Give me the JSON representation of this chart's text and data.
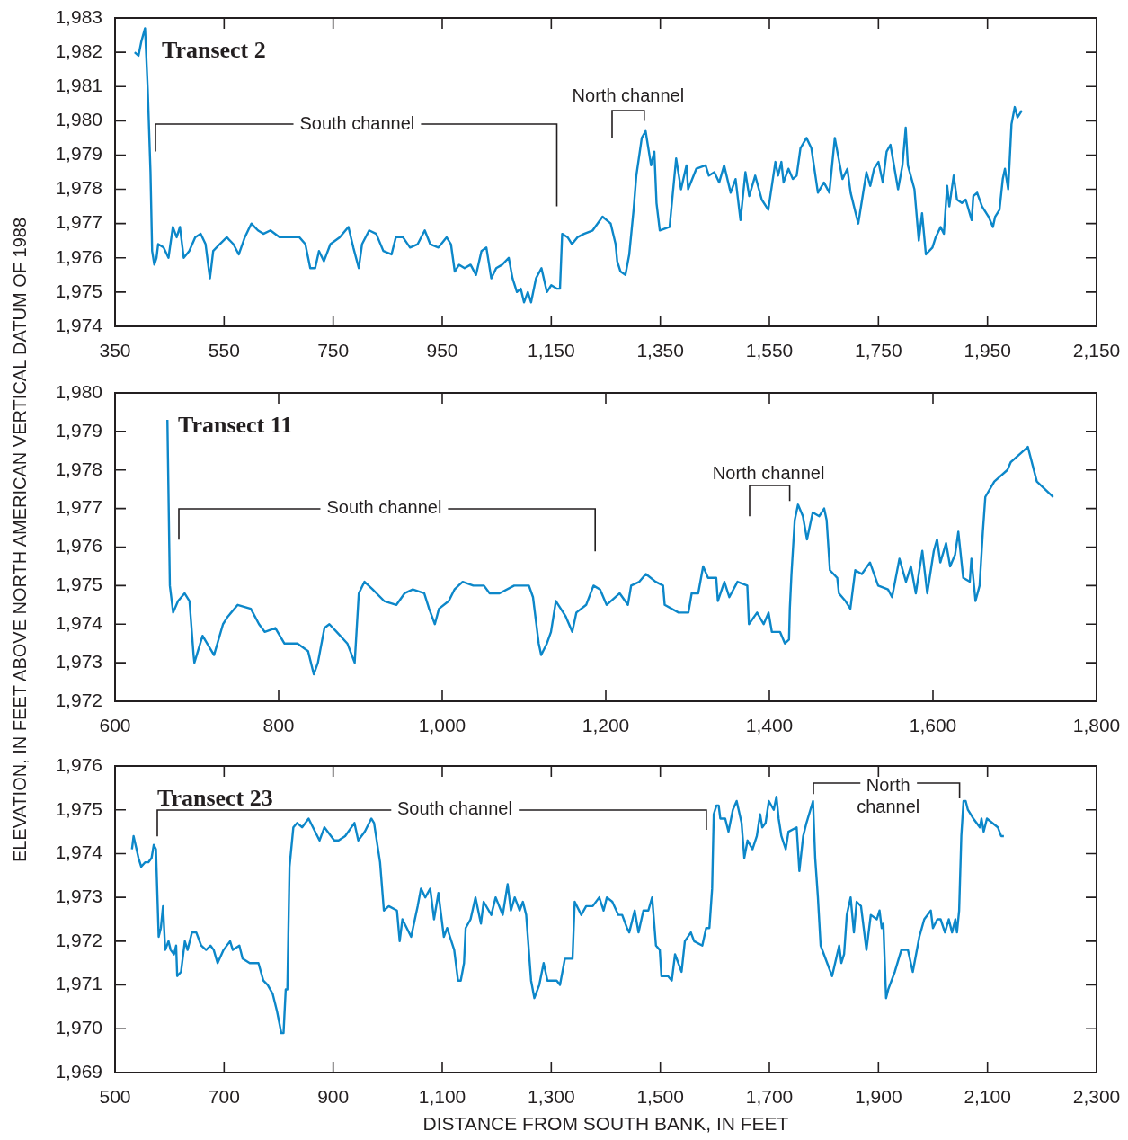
{
  "chart_data": [
    {
      "type": "line",
      "title": "Transect 2",
      "annotations": [
        "South channel",
        "North channel"
      ],
      "xlim": [
        350,
        2150
      ],
      "xticks": [
        350,
        550,
        750,
        950,
        {
          "value": 1150,
          "label": "1,150"
        },
        {
          "value": 1350,
          "label": "1,350"
        },
        {
          "value": 1550,
          "label": "1,550"
        },
        {
          "value": 1750,
          "label": "1,750"
        },
        {
          "value": 1950,
          "label": "1,950"
        },
        {
          "value": 2150,
          "label": "2,150"
        }
      ],
      "ylim": [
        1974,
        1983
      ],
      "yticks": [
        {
          "value": 1974,
          "label": "1,974"
        },
        {
          "value": 1975,
          "label": "1,975"
        },
        {
          "value": 1976,
          "label": "1,976"
        },
        {
          "value": 1977,
          "label": "1,977"
        },
        {
          "value": 1978,
          "label": "1,978"
        },
        {
          "value": 1979,
          "label": "1,979"
        },
        {
          "value": 1980,
          "label": "1,980"
        },
        {
          "value": 1981,
          "label": "1,981"
        },
        {
          "value": 1982,
          "label": "1,982"
        },
        {
          "value": 1983,
          "label": "1,983"
        }
      ],
      "x": [
        386,
        393,
        398,
        405,
        410,
        415,
        418,
        422,
        426,
        429,
        439,
        448,
        456,
        463,
        469,
        476,
        486,
        497,
        507,
        516,
        524,
        530,
        542,
        555,
        567,
        577,
        588,
        600,
        612,
        622,
        635,
        652,
        671,
        688,
        699,
        708,
        717,
        724,
        733,
        745,
        762,
        778,
        787,
        797,
        803,
        816,
        829,
        842,
        857,
        865,
        878,
        891,
        905,
        918,
        928,
        943,
        958,
        966,
        973,
        981,
        991,
        1002,
        1012,
        1022,
        1031,
        1040,
        1049,
        1060,
        1072,
        1079,
        1087,
        1094,
        1100,
        1107,
        1113,
        1122,
        1132,
        1142,
        1150,
        1160,
        1166,
        1170,
        1180,
        1188,
        1198,
        1210,
        1226,
        1244,
        1259,
        1268,
        1271,
        1277,
        1286,
        1293,
        1301,
        1306,
        1316,
        1323,
        1333,
        1339,
        1343,
        1349,
        1367,
        1379,
        1388,
        1398,
        1401,
        1416,
        1433,
        1439,
        1449,
        1458,
        1467,
        1479,
        1488,
        1497,
        1506,
        1513,
        1524,
        1536,
        1548,
        1561,
        1566,
        1572,
        1576,
        1585,
        1593,
        1600,
        1607,
        1618,
        1627,
        1639,
        1650,
        1660,
        1670,
        1684,
        1693,
        1699,
        1713,
        1720,
        1728,
        1735,
        1742,
        1750,
        1758,
        1765,
        1772,
        1786,
        1794,
        1800,
        1804,
        1816,
        1824,
        1830,
        1837,
        1849,
        1855,
        1864,
        1870,
        1876,
        1880,
        1888,
        1894,
        1903,
        1910,
        1921,
        1924,
        1931,
        1940,
        1952,
        1960,
        1964,
        1972,
        1978,
        1982,
        1988,
        1994,
        2000,
        2005,
        2013
      ],
      "series": [
        {
          "color": "#0c87c9",
          "values": [
            1982.0,
            1981.9,
            1982.3,
            1982.7,
            1980.9,
            1978.5,
            1976.2,
            1975.8,
            1976.0,
            1976.4,
            1976.3,
            1976.0,
            1976.9,
            1976.6,
            1976.9,
            1976.0,
            1976.2,
            1976.6,
            1976.7,
            1976.4,
            1975.4,
            1976.2,
            1976.4,
            1976.6,
            1976.4,
            1976.1,
            1976.6,
            1977.0,
            1976.8,
            1976.7,
            1976.8,
            1976.6,
            1976.6,
            1976.6,
            1976.4,
            1975.7,
            1975.7,
            1976.2,
            1975.9,
            1976.4,
            1976.6,
            1976.9,
            1976.3,
            1975.7,
            1976.4,
            1976.8,
            1976.7,
            1976.2,
            1976.1,
            1976.6,
            1976.6,
            1976.3,
            1976.4,
            1976.8,
            1976.4,
            1976.3,
            1976.6,
            1976.4,
            1975.6,
            1975.8,
            1975.7,
            1975.8,
            1975.5,
            1976.2,
            1976.3,
            1975.4,
            1975.7,
            1975.8,
            1976.0,
            1975.4,
            1975.0,
            1975.1,
            1974.7,
            1975.0,
            1974.7,
            1975.4,
            1975.7,
            1975.0,
            1975.2,
            1975.1,
            1975.1,
            1976.7,
            1976.6,
            1976.4,
            1976.6,
            1976.7,
            1976.8,
            1977.2,
            1977.0,
            1976.4,
            1975.9,
            1975.6,
            1975.5,
            1976.1,
            1977.4,
            1978.4,
            1979.5,
            1979.7,
            1978.7,
            1979.1,
            1977.6,
            1976.8,
            1976.9,
            1978.9,
            1978.0,
            1978.7,
            1978.0,
            1978.6,
            1978.7,
            1978.4,
            1978.5,
            1978.2,
            1978.7,
            1977.9,
            1978.3,
            1977.1,
            1978.5,
            1977.8,
            1978.4,
            1977.7,
            1977.4,
            1978.8,
            1978.4,
            1978.8,
            1978.2,
            1978.6,
            1978.3,
            1978.4,
            1979.2,
            1979.5,
            1979.2,
            1977.9,
            1978.2,
            1977.9,
            1979.5,
            1978.3,
            1978.6,
            1977.9,
            1977.0,
            1977.7,
            1978.5,
            1978.1,
            1978.6,
            1978.8,
            1978.2,
            1979.1,
            1979.3,
            1978.0,
            1978.7,
            1979.8,
            1978.7,
            1978.0,
            1976.5,
            1977.3,
            1976.1,
            1976.3,
            1976.6,
            1976.9,
            1976.7,
            1978.1,
            1977.5,
            1978.4,
            1977.7,
            1977.6,
            1977.7,
            1977.1,
            1977.8,
            1977.9,
            1977.5,
            1977.2,
            1976.9,
            1977.2,
            1977.4,
            1978.3,
            1978.6,
            1978.0,
            1979.9,
            1980.4,
            1980.1,
            1980.3
          ]
        }
      ]
    },
    {
      "type": "line",
      "title": "Transect 11",
      "ylabel": "ELEVATION, IN FEET ABOVE NORTH AMERICAN VERTICAL DATUM OF 1988",
      "annotations": [
        "South channel",
        "North channel"
      ],
      "xlim": [
        600,
        1800
      ],
      "xticks": [
        600,
        800,
        {
          "value": 1000,
          "label": "1,000"
        },
        {
          "value": 1200,
          "label": "1,200"
        },
        {
          "value": 1400,
          "label": "1,400"
        },
        {
          "value": 1600,
          "label": "1,600"
        },
        {
          "value": 1800,
          "label": "1,800"
        }
      ],
      "ylim": [
        1972,
        1980
      ],
      "yticks": [
        {
          "value": 1972,
          "label": "1,972"
        },
        {
          "value": 1973,
          "label": "1,973"
        },
        {
          "value": 1974,
          "label": "1,974"
        },
        {
          "value": 1975,
          "label": "1,975"
        },
        {
          "value": 1976,
          "label": "1,976"
        },
        {
          "value": 1977,
          "label": "1,977"
        },
        {
          "value": 1978,
          "label": "1,978"
        },
        {
          "value": 1979,
          "label": "1,979"
        },
        {
          "value": 1980,
          "label": "1,980"
        }
      ],
      "x": [
        664,
        667,
        671,
        677,
        685,
        691,
        696,
        697,
        707,
        721,
        732,
        738,
        750,
        766,
        776,
        783,
        796,
        807,
        823,
        836,
        843,
        848,
        856,
        862,
        871,
        884,
        893,
        898,
        905,
        915,
        929,
        944,
        954,
        964,
        978,
        984,
        991,
        996,
        1008,
        1015,
        1025,
        1038,
        1051,
        1058,
        1070,
        1088,
        1106,
        1111,
        1118,
        1121,
        1128,
        1133,
        1139,
        1151,
        1159,
        1164,
        1176,
        1185,
        1193,
        1201,
        1217,
        1227,
        1231,
        1241,
        1249,
        1261,
        1270,
        1272,
        1289,
        1301,
        1305,
        1313,
        1319,
        1325,
        1335,
        1337,
        1345,
        1351,
        1361,
        1373,
        1375,
        1385,
        1393,
        1399,
        1403,
        1413,
        1419,
        1424,
        1425,
        1427,
        1431,
        1435,
        1441,
        1446,
        1453,
        1461,
        1467,
        1470,
        1474,
        1483,
        1485,
        1493,
        1499,
        1505,
        1513,
        1523,
        1533,
        1545,
        1550,
        1559,
        1567,
        1573,
        1579,
        1587,
        1593,
        1601,
        1605,
        1609,
        1616,
        1621,
        1627,
        1631,
        1637,
        1645,
        1647,
        1652,
        1657,
        1661,
        1664,
        1675,
        1691,
        1695,
        1716,
        1727,
        1747
      ],
      "series": [
        {
          "color": "#0c87c9",
          "values": [
            1979.3,
            1975.0,
            1974.3,
            1974.6,
            1974.8,
            1974.6,
            1973.2,
            1973.0,
            1973.7,
            1973.2,
            1974.0,
            1974.2,
            1974.5,
            1974.4,
            1974.0,
            1973.8,
            1973.9,
            1973.5,
            1973.5,
            1973.3,
            1972.7,
            1973.0,
            1973.9,
            1974.0,
            1973.8,
            1973.5,
            1973.0,
            1974.8,
            1975.1,
            1974.9,
            1974.6,
            1974.5,
            1974.8,
            1974.9,
            1974.8,
            1974.4,
            1974.0,
            1974.4,
            1974.6,
            1974.9,
            1975.1,
            1975.0,
            1975.0,
            1974.8,
            1974.8,
            1975.0,
            1975.0,
            1974.7,
            1973.5,
            1973.2,
            1973.5,
            1973.8,
            1974.6,
            1974.2,
            1973.8,
            1974.3,
            1974.5,
            1975.0,
            1974.9,
            1974.5,
            1974.8,
            1974.5,
            1975.0,
            1975.1,
            1975.3,
            1975.1,
            1975.0,
            1974.5,
            1974.3,
            1974.3,
            1974.8,
            1974.8,
            1975.5,
            1975.2,
            1975.2,
            1974.6,
            1975.1,
            1974.7,
            1975.1,
            1975.0,
            1974.0,
            1974.3,
            1974.0,
            1974.3,
            1973.8,
            1973.8,
            1973.5,
            1973.6,
            1974.4,
            1975.3,
            1976.7,
            1977.1,
            1976.8,
            1976.2,
            1976.9,
            1976.8,
            1977.0,
            1976.7,
            1975.4,
            1975.2,
            1974.8,
            1974.6,
            1974.4,
            1975.4,
            1975.3,
            1975.6,
            1975.0,
            1974.9,
            1974.7,
            1975.7,
            1975.1,
            1975.5,
            1974.8,
            1975.9,
            1974.8,
            1975.9,
            1976.2,
            1975.6,
            1976.1,
            1975.5,
            1975.8,
            1976.4,
            1975.2,
            1975.1,
            1975.7,
            1974.6,
            1975.0,
            1976.4,
            1977.3,
            1977.7,
            1978.0,
            1978.2,
            1978.6,
            1977.7,
            1977.3
          ]
        }
      ]
    },
    {
      "type": "line",
      "title": "Transect 23",
      "xlabel": "DISTANCE FROM SOUTH BANK, IN FEET",
      "annotations": [
        "South channel",
        "North channel"
      ],
      "xlim": [
        500,
        2300
      ],
      "xticks": [
        500,
        700,
        900,
        {
          "value": 1100,
          "label": "1,100"
        },
        {
          "value": 1300,
          "label": "1,300"
        },
        {
          "value": 1500,
          "label": "1,500"
        },
        {
          "value": 1700,
          "label": "1,700"
        },
        {
          "value": 1900,
          "label": "1,900"
        },
        {
          "value": 2100,
          "label": "2,100"
        },
        {
          "value": 2300,
          "label": "2,300"
        }
      ],
      "ylim": [
        1969,
        1976
      ],
      "yticks": [
        {
          "value": 1969,
          "label": "1,969"
        },
        {
          "value": 1970,
          "label": "1,970"
        },
        {
          "value": 1971,
          "label": "1,971"
        },
        {
          "value": 1972,
          "label": "1,972"
        },
        {
          "value": 1973,
          "label": "1,973"
        },
        {
          "value": 1974,
          "label": "1,974"
        },
        {
          "value": 1975,
          "label": "1,975"
        },
        {
          "value": 1976,
          "label": "1,976"
        }
      ],
      "x": [
        531,
        534,
        543,
        548,
        555,
        561,
        567,
        571,
        575,
        580,
        584,
        588,
        592,
        598,
        602,
        608,
        612,
        614,
        621,
        628,
        633,
        641,
        649,
        658,
        667,
        675,
        681,
        688,
        699,
        711,
        716,
        728,
        734,
        747,
        763,
        772,
        780,
        789,
        797,
        805,
        809,
        813,
        816,
        820,
        827,
        834,
        843,
        855,
        863,
        875,
        884,
        902,
        910,
        922,
        939,
        946,
        958,
        970,
        975,
        986,
        993,
        1002,
        1017,
        1022,
        1027,
        1043,
        1055,
        1061,
        1069,
        1078,
        1085,
        1093,
        1103,
        1109,
        1122,
        1129,
        1134,
        1140,
        1143,
        1152,
        1161,
        1171,
        1176,
        1190,
        1198,
        1211,
        1220,
        1226,
        1233,
        1242,
        1248,
        1254,
        1263,
        1269,
        1278,
        1286,
        1293,
        1310,
        1316,
        1325,
        1339,
        1343,
        1355,
        1364,
        1376,
        1388,
        1396,
        1402,
        1412,
        1423,
        1430,
        1439,
        1443,
        1453,
        1460,
        1469,
        1478,
        1485,
        1492,
        1499,
        1502,
        1514,
        1521,
        1527,
        1539,
        1545,
        1556,
        1562,
        1577,
        1584,
        1590,
        1595,
        1598,
        1603,
        1607,
        1610,
        1619,
        1625,
        1633,
        1640,
        1649,
        1654,
        1660,
        1669,
        1677,
        1683,
        1687,
        1693,
        1699,
        1708,
        1713,
        1717,
        1722,
        1730,
        1735,
        1750,
        1755,
        1762,
        1768,
        1780,
        1784,
        1789,
        1794,
        1800,
        1815,
        1828,
        1832,
        1837,
        1842,
        1849,
        1855,
        1860,
        1868,
        1878,
        1886,
        1897,
        1902,
        1906,
        1909,
        1914,
        1918,
        1930,
        1942,
        1954,
        1963,
        1975,
        1984,
        1996,
        2000,
        2008,
        2014,
        2022,
        2029,
        2035,
        2041,
        2044,
        2048,
        2052,
        2056,
        2060,
        2064,
        2074,
        2086,
        2089,
        2093,
        2099,
        2119,
        2125,
        2130
      ],
      "series": [
        {
          "color": "#0c87c9",
          "values": [
            1974.1,
            1974.4,
            1973.9,
            1973.7,
            1973.8,
            1973.8,
            1973.9,
            1974.2,
            1974.1,
            1972.1,
            1972.3,
            1972.8,
            1971.8,
            1972.0,
            1971.8,
            1971.7,
            1971.9,
            1971.2,
            1971.3,
            1972.0,
            1971.8,
            1972.2,
            1972.2,
            1971.9,
            1971.8,
            1971.9,
            1971.8,
            1971.5,
            1971.8,
            1972.0,
            1971.8,
            1971.9,
            1971.6,
            1971.5,
            1971.5,
            1971.1,
            1971.0,
            1970.8,
            1970.4,
            1969.9,
            1969.9,
            1970.9,
            1970.9,
            1973.7,
            1974.6,
            1974.7,
            1974.6,
            1974.8,
            1974.6,
            1974.3,
            1974.6,
            1974.3,
            1974.3,
            1974.4,
            1974.7,
            1974.3,
            1974.5,
            1974.8,
            1974.7,
            1973.8,
            1972.7,
            1972.8,
            1972.7,
            1972.0,
            1972.5,
            1972.1,
            1972.8,
            1973.2,
            1973.0,
            1973.2,
            1972.5,
            1973.1,
            1972.1,
            1972.3,
            1971.8,
            1971.1,
            1971.1,
            1971.5,
            1972.3,
            1972.5,
            1973.0,
            1972.4,
            1972.9,
            1972.6,
            1973.0,
            1972.6,
            1973.3,
            1972.7,
            1973.0,
            1972.7,
            1972.9,
            1972.6,
            1971.1,
            1970.7,
            1971.0,
            1971.5,
            1971.1,
            1971.1,
            1971.0,
            1971.6,
            1971.6,
            1972.9,
            1972.6,
            1972.8,
            1972.8,
            1973.0,
            1972.7,
            1973.0,
            1972.9,
            1972.6,
            1972.6,
            1972.3,
            1972.2,
            1972.7,
            1972.2,
            1972.7,
            1972.7,
            1973.0,
            1971.9,
            1971.8,
            1971.2,
            1971.2,
            1971.1,
            1971.7,
            1971.3,
            1972.0,
            1972.2,
            1972.0,
            1971.9,
            1972.3,
            1972.3,
            1973.2,
            1974.9,
            1975.1,
            1975.1,
            1974.8,
            1974.8,
            1974.5,
            1975.0,
            1975.2,
            1974.7,
            1973.9,
            1974.3,
            1974.1,
            1974.4,
            1974.9,
            1974.6,
            1974.7,
            1975.2,
            1975.0,
            1975.3,
            1974.8,
            1974.4,
            1974.1,
            1974.5,
            1974.6,
            1973.6,
            1974.4,
            1974.7,
            1975.2,
            1973.9,
            1973.0,
            1971.9,
            1971.7,
            1971.2,
            1971.9,
            1971.5,
            1971.7,
            1972.6,
            1973.0,
            1972.2,
            1972.9,
            1972.8,
            1971.8,
            1972.6,
            1972.5,
            1972.7,
            1972.3,
            1972.4,
            1970.7,
            1970.9,
            1971.3,
            1971.8,
            1971.8,
            1971.3,
            1972.1,
            1972.5,
            1972.7,
            1972.3,
            1972.5,
            1972.5,
            1972.2,
            1972.5,
            1972.2,
            1972.5,
            1972.2,
            1972.7,
            1974.4,
            1975.2,
            1975.2,
            1975.0,
            1974.8,
            1974.6,
            1974.8,
            1974.5,
            1974.8,
            1974.6,
            1974.4,
            1974.4
          ]
        }
      ]
    }
  ]
}
